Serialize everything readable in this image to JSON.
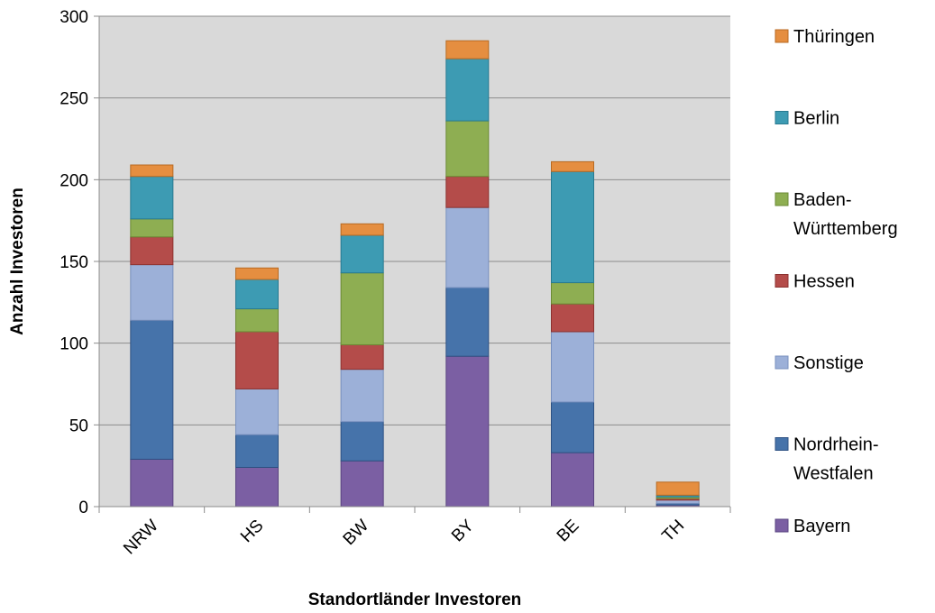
{
  "chart_data": {
    "type": "bar",
    "stacked": true,
    "xlabel": "Standortländer Investoren",
    "ylabel": "Anzahl Investoren",
    "ylim": [
      0,
      300
    ],
    "yticks": [
      0,
      50,
      100,
      150,
      200,
      250,
      300
    ],
    "grid": true,
    "legend_position": "right",
    "categories": [
      "NRW",
      "HS",
      "BW",
      "BY",
      "BE",
      "TH"
    ],
    "series": [
      {
        "name": "Bayern",
        "color": "#7b5fa3",
        "edge": "#5a4480",
        "values": [
          29,
          24,
          28,
          92,
          33,
          1
        ]
      },
      {
        "name": "Nordrhein-Westfalen",
        "color": "#4673aa",
        "edge": "#2e5283",
        "values": [
          85,
          20,
          24,
          42,
          31,
          1
        ]
      },
      {
        "name": "Sonstige",
        "color": "#9cb0d8",
        "edge": "#7890be",
        "values": [
          34,
          28,
          32,
          49,
          43,
          2
        ]
      },
      {
        "name": "Hessen",
        "color": "#b44c4a",
        "edge": "#8c3230",
        "values": [
          17,
          35,
          15,
          19,
          17,
          1
        ]
      },
      {
        "name": "Baden-Württemberg",
        "color": "#8eae52",
        "edge": "#6b8a35",
        "values": [
          11,
          14,
          44,
          34,
          13,
          1
        ]
      },
      {
        "name": "Berlin",
        "color": "#3d9bb3",
        "edge": "#287a90",
        "values": [
          26,
          18,
          23,
          38,
          68,
          1
        ]
      },
      {
        "name": "Thüringen",
        "color": "#e58e40",
        "edge": "#b86a22",
        "values": [
          7,
          7,
          7,
          11,
          6,
          8
        ]
      }
    ],
    "legend_order": [
      "Thüringen",
      "Berlin",
      "Baden-Württemberg",
      "Hessen",
      "Sonstige",
      "Nordrhein-Westfalen",
      "Bayern"
    ],
    "legend_lines": {
      "Baden-Württemberg": [
        "Baden-",
        "Württemberg"
      ],
      "Nordrhein-Westfalen": [
        "Nordrhein-",
        "Westfalen"
      ]
    }
  }
}
